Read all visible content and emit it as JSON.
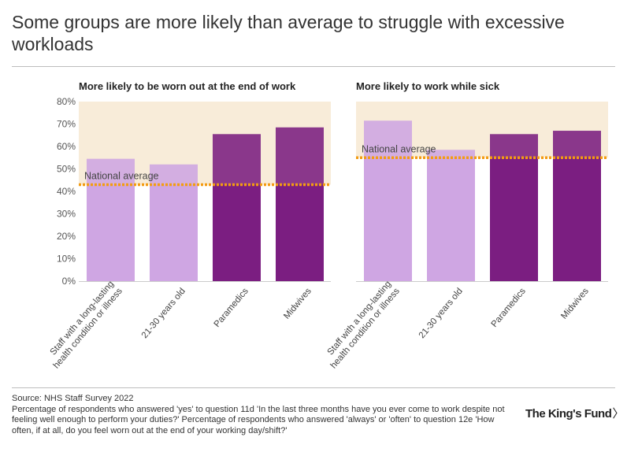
{
  "title": "Some groups are more likely than average to struggle with excessive workloads",
  "colors": {
    "light_bar": "#cfa6e3",
    "dark_bar": "#7b1e81",
    "band": "#f8ecd9",
    "average_line": "#f39c12",
    "axis_text": "#555555",
    "label_text": "#444444"
  },
  "chart_data": [
    {
      "type": "bar",
      "title": "More likely to be worn out at the end of work",
      "categories": [
        "Staff with a long-lasting health condition or illness",
        "21-30 years old",
        "Paramedics",
        "Midwives"
      ],
      "category_lines": [
        [
          "Staff with a long-lasting",
          "health condition or illness"
        ],
        [
          "21-30 years old"
        ],
        [
          "Paramedics"
        ],
        [
          "Midwives"
        ]
      ],
      "values": [
        54.5,
        52,
        65.5,
        68.5
      ],
      "styles": [
        "light",
        "light",
        "dark",
        "dark"
      ],
      "reference": {
        "label": "National average",
        "value": 43
      },
      "ylim": [
        0,
        80
      ],
      "yticks": [
        "0%",
        "10%",
        "20%",
        "30%",
        "40%",
        "50%",
        "60%",
        "70%",
        "80%"
      ],
      "ytick_values": [
        0,
        10,
        20,
        30,
        40,
        50,
        60,
        70,
        80
      ],
      "show_yaxis": true
    },
    {
      "type": "bar",
      "title": "More likely to work while sick",
      "categories": [
        "Staff with a long-lasting health condition or illness",
        "21-30 years old",
        "Paramedics",
        "Midwives"
      ],
      "category_lines": [
        [
          "Staff with a long-lasting",
          "health condition or illness"
        ],
        [
          "21-30 years old"
        ],
        [
          "Paramedics"
        ],
        [
          "Midwives"
        ]
      ],
      "values": [
        71.5,
        58.5,
        65.5,
        67
      ],
      "styles": [
        "light",
        "light",
        "dark",
        "dark"
      ],
      "reference": {
        "label": "National average",
        "value": 55
      },
      "ylim": [
        0,
        80
      ],
      "show_yaxis": false
    }
  ],
  "footer": {
    "source": "Source: NHS Staff Survey 2022",
    "note": "Percentage of respondents who answered 'yes' to question 11d 'In the last three months have you ever come to work despite not feeling well enough to perform your duties?' Percentage of respondents who answered 'always' or 'often' to question 12e 'How often, if at all, do you feel worn out at the end of your working day/shift?'"
  },
  "logo": {
    "text": "The King's Fund",
    "chevron": "〉"
  }
}
